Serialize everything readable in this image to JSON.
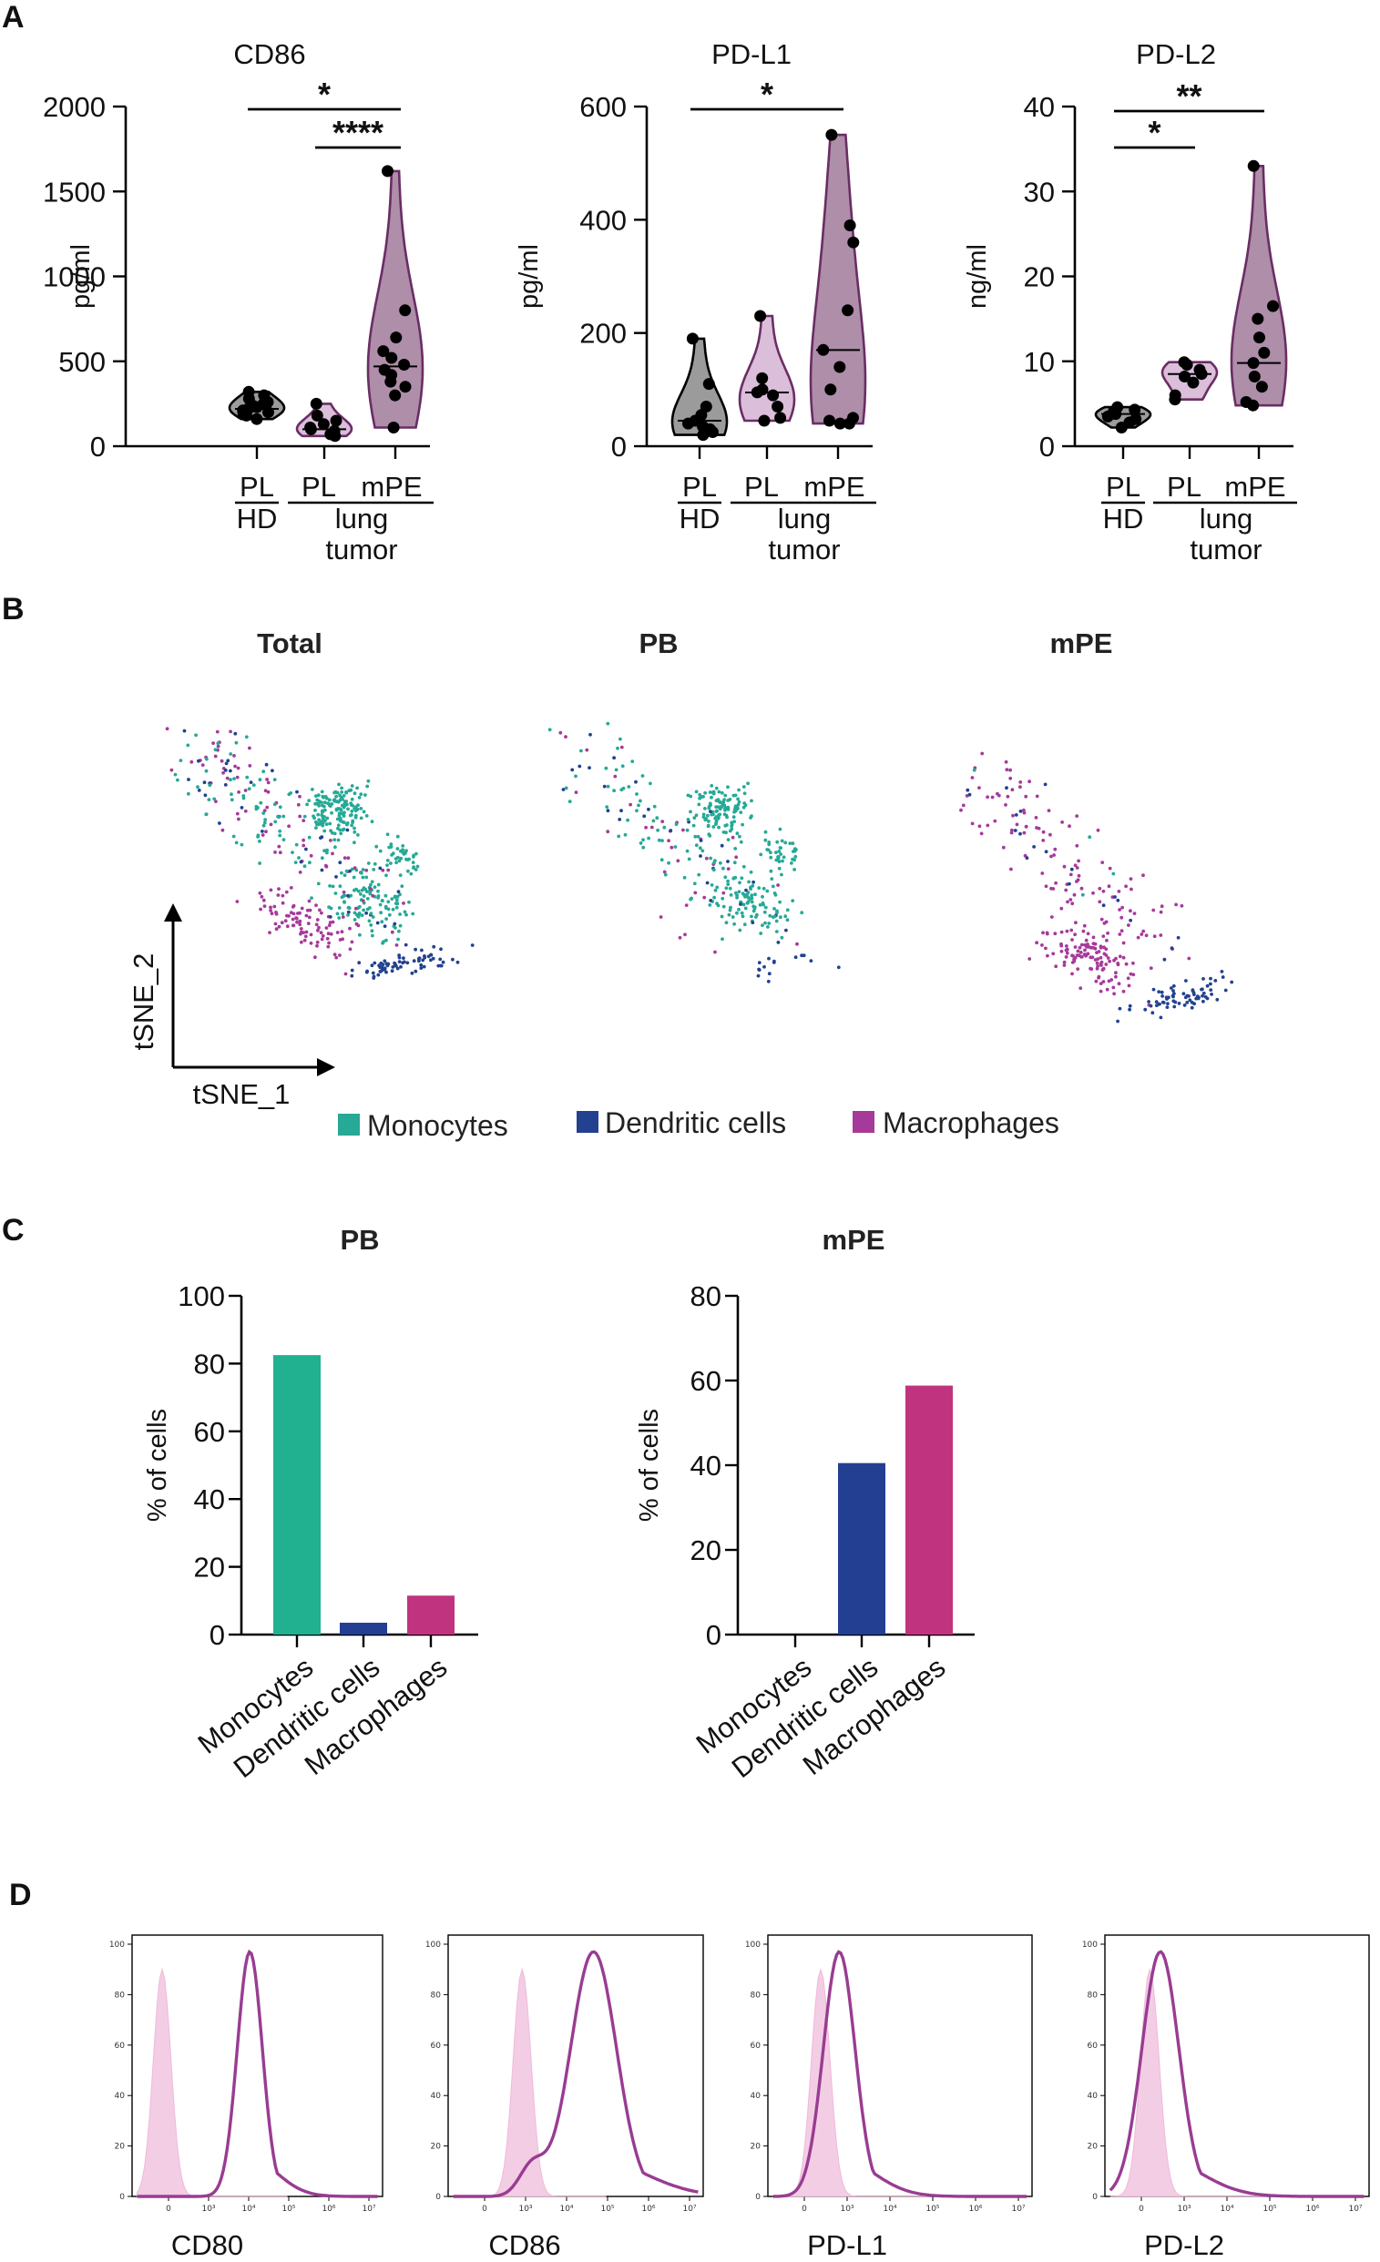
{
  "panels": {
    "a": "A",
    "b": "B",
    "c": "C",
    "d": "D"
  },
  "colors": {
    "black": "#000000",
    "dark_plum": "#6a2d64",
    "light_violin": "#d7b7d6",
    "mid_violin": "#a07a9a",
    "monocytes": "#26a996",
    "dendritic": "#22428f",
    "macrophages": "#a63a9a",
    "bar_mono": "#21b191",
    "bar_dc": "#233f92",
    "bar_mac": "#c0347f",
    "flow_fill": "#f3cde4",
    "flow_line": "#993c92"
  },
  "panel_a": {
    "group_labels": {
      "pl": "PL",
      "hd": "HD",
      "mpe": "mPE",
      "lung": "lung",
      "tumor": "tumor"
    },
    "charts": [
      {
        "title": "CD86",
        "ylabel": "pg/ml",
        "ylim": [
          0,
          2000
        ],
        "ticks": [
          "0",
          "500",
          "1000",
          "1500",
          "2000"
        ],
        "groups": [
          {
            "name": "PL HD",
            "median": 220,
            "points": [
              320,
              300,
              280,
              260,
              250,
              240,
              230,
              220,
              210,
              200,
              190,
              180,
              160
            ]
          },
          {
            "name": "PL lung tumor",
            "median": 100,
            "points": [
              250,
              180,
              150,
              130,
              110,
              100,
              90,
              80,
              70,
              60
            ]
          },
          {
            "name": "mPE lung tumor",
            "median": 470,
            "points": [
              1620,
              800,
              640,
              560,
              520,
              480,
              450,
              420,
              380,
              350,
              300,
              110
            ]
          }
        ],
        "significance": [
          {
            "from": 0,
            "to": 2,
            "label": "*"
          },
          {
            "from": 1,
            "to": 2,
            "label": "****"
          }
        ]
      },
      {
        "title": "PD-L1",
        "ylabel": "pg/ml",
        "ylim": [
          0,
          600
        ],
        "ticks": [
          "0",
          "200",
          "400",
          "600"
        ],
        "groups": [
          {
            "name": "PL HD",
            "median": 45,
            "points": [
              190,
              110,
              70,
              55,
              45,
              40,
              35,
              30,
              25,
              20
            ]
          },
          {
            "name": "PL lung tumor",
            "median": 95,
            "points": [
              230,
              120,
              100,
              95,
              90,
              70,
              50,
              45
            ]
          },
          {
            "name": "mPE lung tumor",
            "median": 170,
            "points": [
              550,
              390,
              360,
              240,
              170,
              140,
              100,
              50,
              45,
              40,
              40
            ]
          }
        ],
        "significance": [
          {
            "from": 0,
            "to": 2,
            "label": "*"
          }
        ]
      },
      {
        "title": "PD-L2",
        "ylabel": "ng/ml",
        "ylim": [
          0,
          40
        ],
        "ticks": [
          "0",
          "10",
          "20",
          "30",
          "40"
        ],
        "groups": [
          {
            "name": "PL HD",
            "median": 3.8,
            "points": [
              4.6,
              4.3,
              4.0,
              3.8,
              3.5,
              3.2,
              2.8,
              2.2
            ]
          },
          {
            "name": "PL lung tumor",
            "median": 8.5,
            "points": [
              9.9,
              9.6,
              9.0,
              8.5,
              8.2,
              7.5,
              6.0,
              5.5
            ]
          },
          {
            "name": "mPE lung tumor",
            "median": 9.8,
            "points": [
              33,
              16.5,
              15,
              12.8,
              11,
              9.8,
              8.2,
              7.0,
              5.2,
              4.8
            ]
          }
        ],
        "significance": [
          {
            "from": 0,
            "to": 1,
            "label": "*"
          },
          {
            "from": 0,
            "to": 2,
            "label": "**"
          }
        ]
      }
    ]
  },
  "panel_b": {
    "titles": [
      "Total",
      "PB",
      "mPE"
    ],
    "axis_x": "tSNE_1",
    "axis_y": "tSNE_2",
    "legend": [
      {
        "label": "Monocytes",
        "color": "#26a996"
      },
      {
        "label": "Dendritic cells",
        "color": "#22428f"
      },
      {
        "label": "Macrophages",
        "color": "#a63a9a"
      }
    ]
  },
  "chart_data": [
    {
      "type": "bar",
      "title": "PB",
      "ylabel": "% of cells",
      "ylim": [
        0,
        100
      ],
      "ticks": [
        "0",
        "20",
        "40",
        "60",
        "80",
        "100"
      ],
      "categories": [
        "Monocytes",
        "Dendritic cells",
        "Macrophages"
      ],
      "values": [
        82.5,
        3.5,
        11.5
      ]
    },
    {
      "type": "bar",
      "title": "mPE",
      "ylabel": "% of cells",
      "ylim": [
        0,
        80
      ],
      "ticks": [
        "0",
        "20",
        "40",
        "60",
        "80"
      ],
      "categories": [
        "Monocytes",
        "Dendritic cells",
        "Macrophages"
      ],
      "values": [
        0,
        40.5,
        58.8
      ]
    }
  ],
  "panel_d": {
    "y_ticks": [
      "0",
      "20",
      "40",
      "60",
      "80",
      "100"
    ],
    "x_ticks": [
      "0",
      "10³",
      "10⁴",
      "10⁵",
      "10⁶",
      "10⁷"
    ],
    "histograms": [
      {
        "label": "CD80",
        "isotype_peak": 0.12,
        "stain_peak": 0.47,
        "stain_width": 0.05
      },
      {
        "label": "CD86",
        "isotype_peak": 0.29,
        "stain_peak": 0.57,
        "stain_width": 0.09
      },
      {
        "label": "PD-L1",
        "isotype_peak": 0.2,
        "stain_peak": 0.27,
        "stain_width": 0.06
      },
      {
        "label": "PD-L2",
        "isotype_peak": 0.17,
        "stain_peak": 0.21,
        "stain_width": 0.07
      }
    ]
  }
}
